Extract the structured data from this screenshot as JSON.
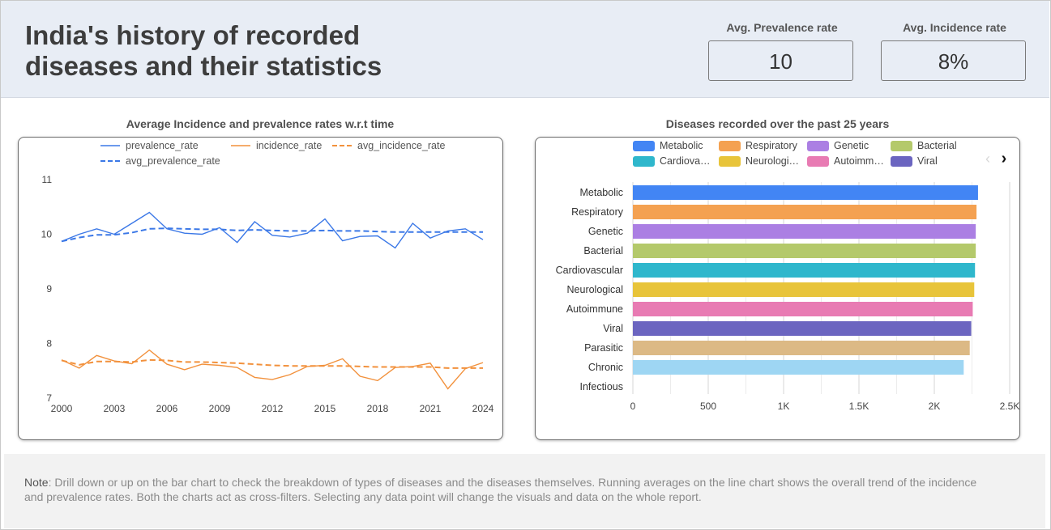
{
  "header": {
    "title": "India's history of recorded diseases and their statistics",
    "kpis": [
      {
        "label": "Avg. Prevalence rate",
        "value": "10"
      },
      {
        "label": "Avg. Incidence rate",
        "value": "8%"
      }
    ]
  },
  "colors": {
    "prevalence": "#3b78e7",
    "incidence": "#f2913c",
    "header_bg": "#e8edf5"
  },
  "chart_data": [
    {
      "type": "line",
      "title": "Average Incidence and prevalence rates w.r.t time",
      "legend": [
        "prevalence_rate",
        "incidence_rate",
        "avg_incidence_rate",
        "avg_prevalence_rate"
      ],
      "x": [
        2000,
        2001,
        2002,
        2003,
        2004,
        2005,
        2006,
        2007,
        2008,
        2009,
        2010,
        2011,
        2012,
        2013,
        2014,
        2015,
        2016,
        2017,
        2018,
        2019,
        2020,
        2021,
        2022,
        2023,
        2024
      ],
      "xticks": [
        "2000",
        "2003",
        "2006",
        "2009",
        "2012",
        "2015",
        "2018",
        "2021",
        "2024"
      ],
      "yticks": [
        "7",
        "8",
        "9",
        "10",
        "11"
      ],
      "ylim": [
        7,
        11
      ],
      "series": [
        {
          "name": "prevalence_rate",
          "style": "solid",
          "color": "#3b78e7",
          "values": [
            9.87,
            10.0,
            10.1,
            10.0,
            10.2,
            10.4,
            10.1,
            10.02,
            10.0,
            10.12,
            9.85,
            10.23,
            9.98,
            9.95,
            10.02,
            10.28,
            9.88,
            9.96,
            9.97,
            9.75,
            10.2,
            9.93,
            10.06,
            10.1,
            9.9
          ]
        },
        {
          "name": "incidence_rate",
          "style": "solid",
          "color": "#f2913c",
          "values": [
            7.7,
            7.55,
            7.78,
            7.68,
            7.63,
            7.88,
            7.62,
            7.52,
            7.62,
            7.6,
            7.56,
            7.38,
            7.34,
            7.43,
            7.58,
            7.6,
            7.72,
            7.4,
            7.32,
            7.56,
            7.58,
            7.64,
            7.17,
            7.54,
            7.65
          ]
        },
        {
          "name": "avg_incidence_rate",
          "style": "dashed",
          "color": "#f2913c",
          "values": [
            7.69,
            7.61,
            7.67,
            7.67,
            7.66,
            7.7,
            7.69,
            7.66,
            7.66,
            7.65,
            7.64,
            7.62,
            7.6,
            7.59,
            7.59,
            7.59,
            7.59,
            7.58,
            7.57,
            7.57,
            7.57,
            7.57,
            7.55,
            7.55,
            7.55
          ]
        },
        {
          "name": "avg_prevalence_rate",
          "style": "dashed",
          "color": "#3b78e7",
          "values": [
            9.87,
            9.94,
            9.99,
            9.99,
            10.03,
            10.1,
            10.11,
            10.1,
            10.09,
            10.09,
            10.07,
            10.08,
            10.07,
            10.06,
            10.06,
            10.07,
            10.06,
            10.06,
            10.05,
            10.04,
            10.04,
            10.04,
            10.04,
            10.04,
            10.04
          ]
        }
      ]
    },
    {
      "type": "bar",
      "orientation": "horizontal",
      "title": "Diseases recorded over the past 25 years",
      "legend": [
        {
          "label": "Metabolic",
          "color": "#4285f4"
        },
        {
          "label": "Respiratory",
          "color": "#f4a151"
        },
        {
          "label": "Genetic",
          "color": "#ab7fe3"
        },
        {
          "label": "Bacterial",
          "color": "#b4c96b"
        },
        {
          "label": "Cardiova…",
          "color": "#2fb7cc"
        },
        {
          "label": "Neurologi…",
          "color": "#e8c43a"
        },
        {
          "label": "Autoimm…",
          "color": "#e87bb3"
        },
        {
          "label": "Viral",
          "color": "#6b65c0"
        }
      ],
      "categories": [
        "Metabolic",
        "Respiratory",
        "Genetic",
        "Bacterial",
        "Cardiovascular",
        "Neurological",
        "Autoimmune",
        "Viral",
        "Parasitic",
        "Chronic",
        "Infectious"
      ],
      "values": [
        2290,
        2280,
        2275,
        2275,
        2270,
        2265,
        2255,
        2245,
        2235,
        2195,
        0
      ],
      "bar_colors": [
        "#4285f4",
        "#f4a151",
        "#ab7fe3",
        "#b4c96b",
        "#2fb7cc",
        "#e8c43a",
        "#e87bb3",
        "#6b65c0",
        "#dcb985",
        "#9ed6f3",
        "#cccccc"
      ],
      "xticks": [
        "0",
        "500",
        "1K",
        "1.5K",
        "2K",
        "2.5K"
      ],
      "xlim": [
        0,
        2500
      ]
    }
  ],
  "footer": {
    "note_label": "Note",
    "note_text": ": Drill down or up on the bar chart to check the breakdown of types of diseases and the diseases themselves. Running averages on the line chart shows the overall trend of the incidence and prevalence rates. Both the charts act as cross-filters. Selecting any data point will change the visuals and data on the whole report."
  }
}
